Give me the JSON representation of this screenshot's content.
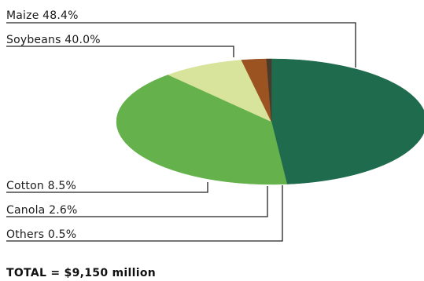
{
  "chart_data": {
    "type": "pie",
    "slices": [
      {
        "name": "Maize",
        "label": "Maize  48.4%",
        "value": 48.4,
        "color": "#1e6b4e"
      },
      {
        "name": "Soybeans",
        "label": "Soybeans  40.0%",
        "value": 40.0,
        "color": "#65b24c"
      },
      {
        "name": "Cotton",
        "label": "Cotton  8.5%",
        "value": 8.5,
        "color": "#d8e39c"
      },
      {
        "name": "Canola",
        "label": "Canola  2.6%",
        "value": 2.6,
        "color": "#9b5322"
      },
      {
        "name": "Others",
        "label": "Others  0.5%",
        "value": 0.5,
        "color": "#4a3a2c"
      }
    ],
    "total_label": "TOTAL = $9,150 million"
  }
}
